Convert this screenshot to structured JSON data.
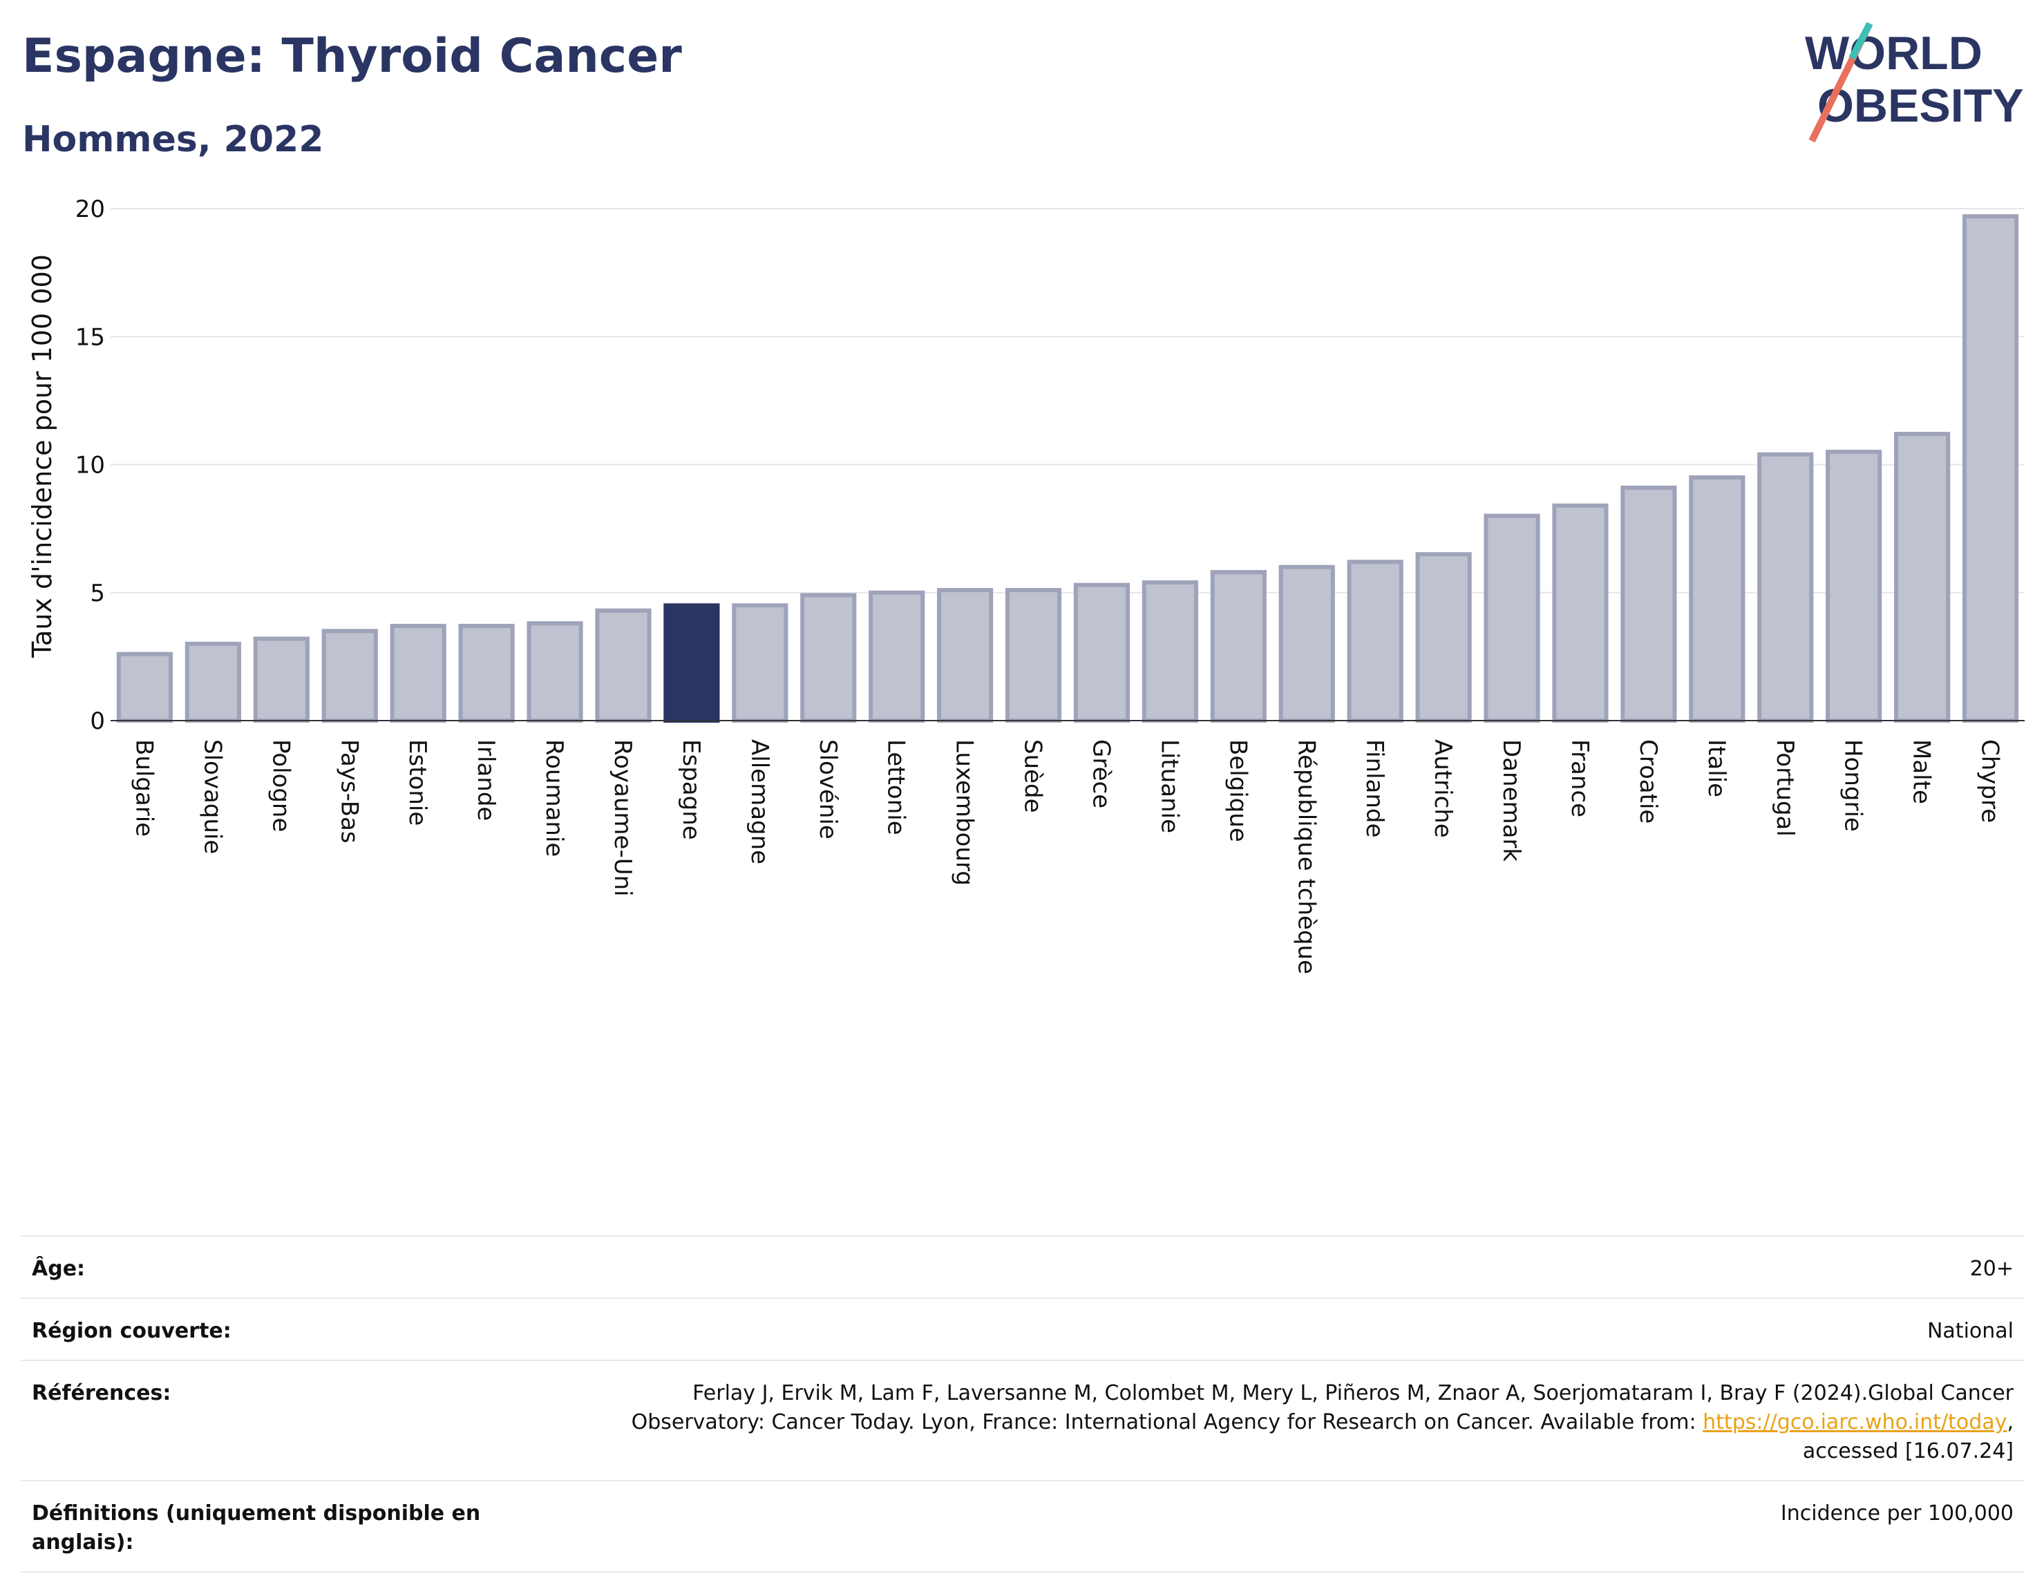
{
  "header": {
    "title": "Espagne: Thyroid Cancer",
    "subtitle": "Hommes, 2022"
  },
  "logo": {
    "line1": "WORLD",
    "line2": "OBESITY"
  },
  "colors": {
    "highlight": "#2b3563",
    "bar": "#bfc2cf",
    "bar_border": "#9ea3ba",
    "title": "#2b3563",
    "grid": "#e6e6ea"
  },
  "chart_data": {
    "type": "bar",
    "ylabel": "Taux d'incidence pour 100 000",
    "ylim": [
      0,
      20
    ],
    "yticks": [
      0,
      5,
      10,
      15,
      20
    ],
    "grid": true,
    "highlight": "Espagne",
    "categories": [
      "Bulgarie",
      "Slovaquie",
      "Pologne",
      "Pays-Bas",
      "Estonie",
      "Irlande",
      "Roumanie",
      "Royaume-Uni",
      "Espagne",
      "Allemagne",
      "Slovénie",
      "Lettonie",
      "Luxembourg",
      "Suède",
      "Grèce",
      "Lituanie",
      "Belgique",
      "République tchèque",
      "Finlande",
      "Autriche",
      "Danemark",
      "France",
      "Croatie",
      "Italie",
      "Portugal",
      "Hongrie",
      "Malte",
      "Chypre"
    ],
    "values": [
      2.6,
      3.0,
      3.2,
      3.5,
      3.7,
      3.7,
      3.8,
      4.3,
      4.5,
      4.5,
      4.9,
      5.0,
      5.1,
      5.1,
      5.3,
      5.4,
      5.8,
      6.0,
      6.2,
      6.5,
      8.0,
      8.4,
      9.1,
      9.5,
      10.4,
      10.5,
      11.2,
      19.7
    ]
  },
  "meta": {
    "age_label": "Âge:",
    "age_value": "20+",
    "region_label": "Région couverte:",
    "region_value": "National",
    "refs_label": "Références:",
    "refs_text": "Ferlay J, Ervik M, Lam F, Laversanne M, Colombet M, Mery L, Piñeros M, Znaor A, Soerjomataram I, Bray F (2024).Global Cancer Observatory: Cancer Today. Lyon, France: International Agency for Research on Cancer. Available from:",
    "refs_link": "https://gco.iarc.who.int/today",
    "refs_tail": ", accessed [16.07.24]",
    "defs_label": "Définitions (uniquement disponible en anglais):",
    "defs_value": "Incidence per 100,000"
  }
}
